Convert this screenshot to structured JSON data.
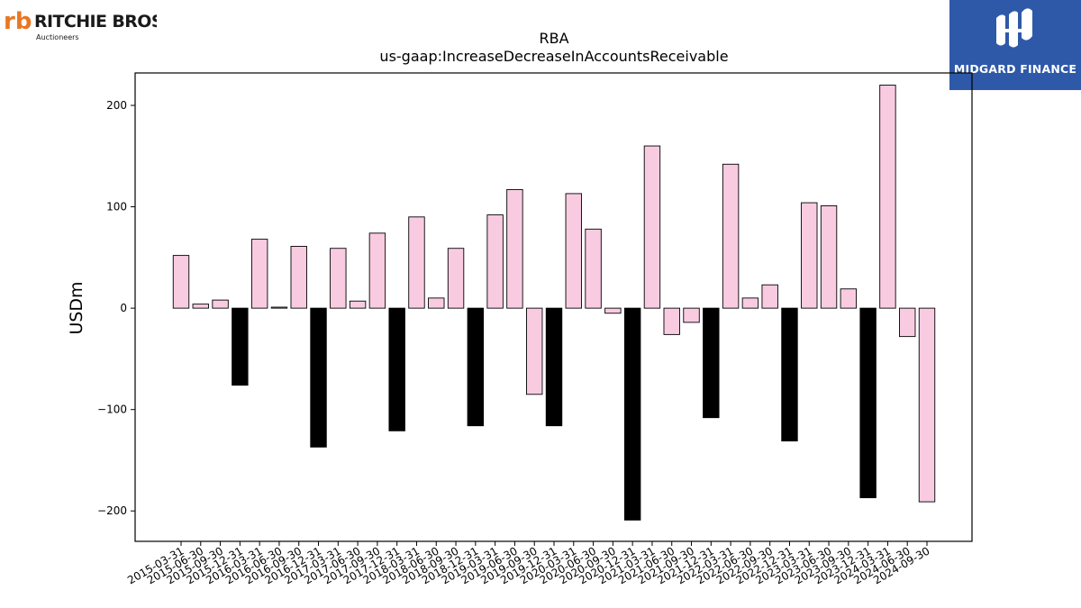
{
  "logos": {
    "left_brand": "RITCHIE BROS.",
    "left_sub": "Auctioneers",
    "right_brand": "MIDGARD FINANCE"
  },
  "colors": {
    "bar_default": "#f9cbe1",
    "bar_highlight": "#000000",
    "right_logo_bg": "#2e59a8",
    "left_logo_accent": "#e87722"
  },
  "chart_data": {
    "type": "bar",
    "title": "RBA",
    "subtitle": "us-gaap:IncreaseDecreaseInAccountsReceivable",
    "xlabel": "",
    "ylabel": "USDm",
    "ylim": [
      -230,
      232
    ],
    "yticks": [
      -200,
      -100,
      0,
      100,
      200
    ],
    "grid": false,
    "categories": [
      "2015-03-31",
      "2015-06-30",
      "2015-09-30",
      "2015-12-31",
      "2016-03-31",
      "2016-06-30",
      "2016-09-30",
      "2016-12-31",
      "2017-03-31",
      "2017-06-30",
      "2017-09-30",
      "2017-12-31",
      "2018-03-31",
      "2018-06-30",
      "2018-09-30",
      "2018-12-31",
      "2019-03-31",
      "2019-06-30",
      "2019-09-30",
      "2019-12-31",
      "2020-03-31",
      "2020-06-30",
      "2020-09-30",
      "2020-12-31",
      "2021-03-31",
      "2021-06-30",
      "2021-09-30",
      "2021-12-31",
      "2022-03-31",
      "2022-06-30",
      "2022-09-30",
      "2022-12-31",
      "2023-03-31",
      "2023-06-30",
      "2023-09-30",
      "2023-12-31",
      "2024-03-31",
      "2024-06-30",
      "2024-09-30"
    ],
    "values": [
      52,
      4,
      8,
      -76,
      68,
      1,
      61,
      -137,
      59,
      7,
      74,
      -121,
      90,
      10,
      59,
      -116,
      92,
      117,
      -85,
      -116,
      113,
      78,
      -5,
      -209,
      160,
      -26,
      -14,
      -108,
      142,
      10,
      23,
      -131,
      104,
      101,
      19,
      -187,
      220,
      -28,
      -191
    ],
    "highlight_pattern": "year-end quarters (12-31) shown in black"
  }
}
